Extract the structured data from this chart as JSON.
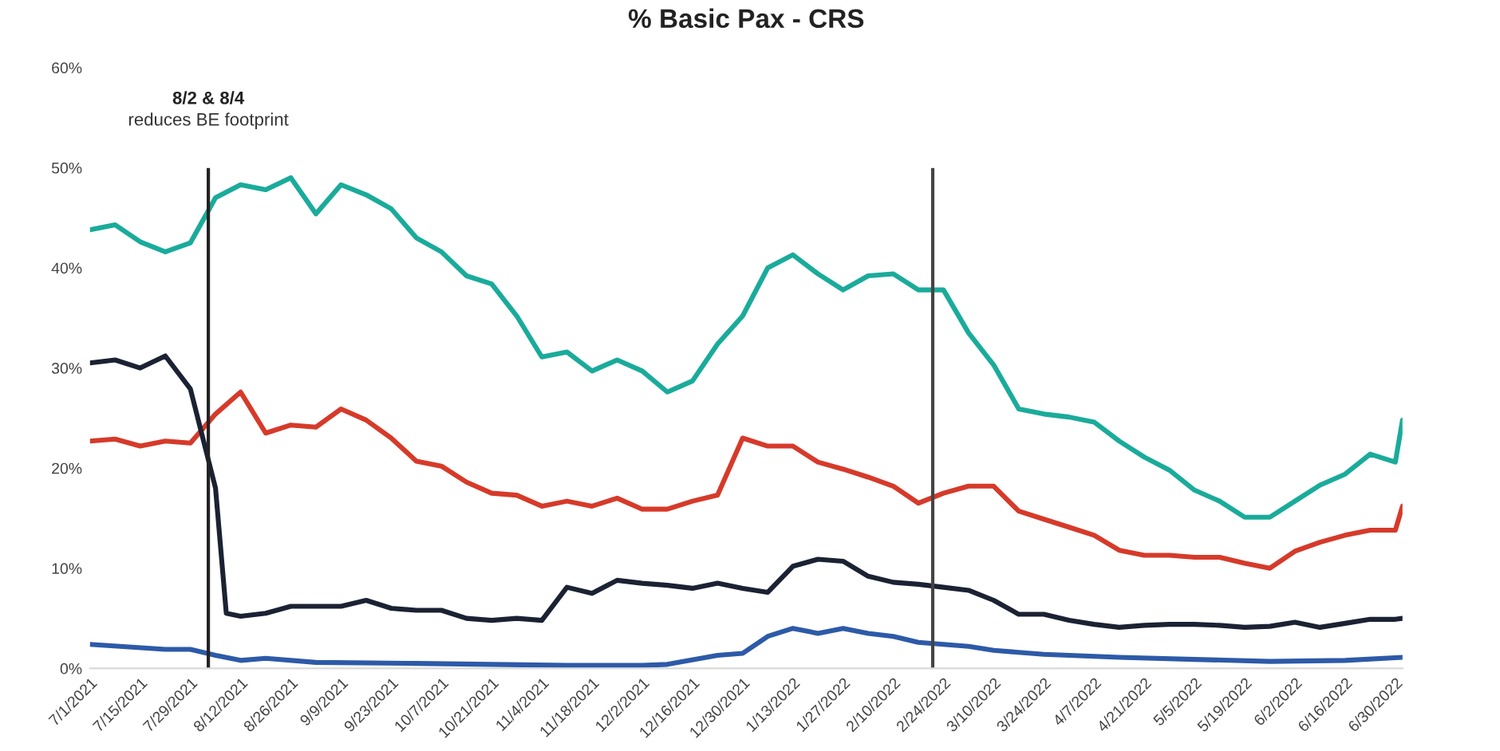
{
  "chart_data": {
    "type": "line",
    "title": "% Basic Pax - CRS",
    "x": [
      "2021-07-01",
      "2021-07-08",
      "2021-07-15",
      "2021-07-22",
      "2021-07-29",
      "2021-08-05",
      "2021-08-12",
      "2021-08-19",
      "2021-08-26",
      "2021-09-02",
      "2021-09-09",
      "2021-09-16",
      "2021-09-23",
      "2021-09-30",
      "2021-10-07",
      "2021-10-14",
      "2021-10-21",
      "2021-10-28",
      "2021-11-04",
      "2021-11-11",
      "2021-11-18",
      "2021-11-25",
      "2021-12-02",
      "2021-12-09",
      "2021-12-16",
      "2021-12-23",
      "2021-12-30",
      "2022-01-06",
      "2022-01-13",
      "2022-01-20",
      "2022-01-27",
      "2022-02-03",
      "2022-02-10",
      "2022-02-17",
      "2022-02-24",
      "2022-03-03",
      "2022-03-10",
      "2022-03-17",
      "2022-03-24",
      "2022-03-31",
      "2022-04-07",
      "2022-04-14",
      "2022-04-21",
      "2022-04-28",
      "2022-05-05",
      "2022-05-12",
      "2022-05-19",
      "2022-05-26",
      "2022-06-02",
      "2022-06-09",
      "2022-06-16",
      "2022-06-23",
      "2022-06-30",
      "2022-07-02"
    ],
    "series": [
      {
        "color": "#1aab9b",
        "values": [
          43.8,
          44.3,
          42.6,
          41.6,
          42.5,
          47,
          48.3,
          47.8,
          49,
          45.4,
          48.3,
          47.3,
          45.9,
          43,
          41.6,
          39.2,
          38.4,
          35.2,
          31.1,
          31.6,
          29.7,
          30.8,
          29.7,
          27.6,
          28.7,
          32.4,
          35.2,
          40,
          41.3,
          39.4,
          37.8,
          39.2,
          39.4,
          37.8,
          37.8,
          33.5,
          30.3,
          25.9,
          25.4,
          25.1,
          24.6,
          22.7,
          21.1,
          19.8,
          17.8,
          16.7,
          15.1,
          15.1,
          16.7,
          18.3,
          19.4,
          21.4,
          20.6,
          24.8
        ]
      },
      {
        "color": "#d63a2a",
        "values": [
          22.7,
          22.9,
          22.2,
          22.7,
          22.5,
          25.4,
          27.6,
          23.5,
          24.3,
          24.1,
          25.9,
          24.8,
          23,
          20.7,
          20.2,
          18.6,
          17.5,
          17.3,
          16.2,
          16.7,
          16.2,
          17.0,
          15.9,
          15.9,
          16.7,
          17.3,
          23,
          22.2,
          22.2,
          20.6,
          19.9,
          19.1,
          18.2,
          16.5,
          17.5,
          18.2,
          18.2,
          15.7,
          14.9,
          14.1,
          13.3,
          11.8,
          11.3,
          11.3,
          11.1,
          11.1,
          10.5,
          10.0,
          11.7,
          12.6,
          13.3,
          13.8,
          13.8,
          16.2
        ]
      },
      {
        "color": "#1a2233",
        "x": [
          "2021-07-01",
          "2021-07-08",
          "2021-07-15",
          "2021-07-22",
          "2021-07-29",
          "2021-08-05",
          "2021-08-08",
          "2021-08-12",
          "2021-08-19",
          "2021-08-26",
          "2021-09-02",
          "2021-09-09",
          "2021-09-16",
          "2021-09-23",
          "2021-09-30",
          "2021-10-07",
          "2021-10-14",
          "2021-10-21",
          "2021-10-28",
          "2021-11-04",
          "2021-11-11",
          "2021-11-18",
          "2021-11-25",
          "2021-12-02",
          "2021-12-09",
          "2021-12-16",
          "2021-12-23",
          "2021-12-30",
          "2022-01-06",
          "2022-01-13",
          "2022-01-20",
          "2022-01-27",
          "2022-02-03",
          "2022-02-10",
          "2022-02-17",
          "2022-02-24",
          "2022-03-03",
          "2022-03-10",
          "2022-03-17",
          "2022-03-24",
          "2022-03-31",
          "2022-04-07",
          "2022-04-14",
          "2022-04-21",
          "2022-04-28",
          "2022-05-05",
          "2022-05-12",
          "2022-05-19",
          "2022-05-26",
          "2022-06-02",
          "2022-06-09",
          "2022-06-16",
          "2022-06-23",
          "2022-06-30",
          "2022-07-02"
        ],
        "values": [
          30.5,
          30.8,
          30,
          31.2,
          27.9,
          18,
          5.5,
          5.2,
          5.5,
          6.2,
          6.2,
          6.2,
          6.8,
          6.0,
          5.8,
          5.8,
          5.0,
          4.8,
          5.0,
          4.8,
          8.1,
          7.5,
          8.8,
          8.5,
          8.3,
          8.0,
          8.5,
          8.0,
          7.6,
          10.2,
          10.9,
          10.7,
          9.2,
          8.6,
          8.4,
          8.1,
          7.8,
          6.8,
          5.4,
          5.4,
          4.8,
          4.4,
          4.1,
          4.3,
          4.4,
          4.4,
          4.3,
          4.1,
          4.2,
          4.6,
          4.1,
          4.5,
          4.9,
          4.9,
          5.0
        ]
      },
      {
        "color": "#2d5aa8",
        "x": [
          "2021-07-01",
          "2021-07-22",
          "2021-07-29",
          "2021-08-05",
          "2021-08-12",
          "2021-08-19",
          "2021-09-02",
          "2021-09-30",
          "2021-10-21",
          "2021-11-11",
          "2021-12-02",
          "2021-12-09",
          "2021-12-23",
          "2021-12-30",
          "2022-01-06",
          "2022-01-13",
          "2022-01-20",
          "2022-01-27",
          "2022-02-03",
          "2022-02-10",
          "2022-02-17",
          "2022-02-24",
          "2022-03-03",
          "2022-03-10",
          "2022-03-24",
          "2022-04-14",
          "2022-05-05",
          "2022-05-26",
          "2022-06-16",
          "2022-07-02"
        ],
        "values": [
          2.4,
          1.9,
          1.9,
          1.3,
          0.8,
          1.0,
          0.6,
          0.5,
          0.4,
          0.3,
          0.3,
          0.4,
          1.3,
          1.5,
          3.2,
          4.0,
          3.5,
          4.0,
          3.5,
          3.2,
          2.6,
          2.4,
          2.2,
          1.8,
          1.4,
          1.1,
          0.9,
          0.7,
          0.8,
          1.1
        ]
      }
    ],
    "xlim": [
      "2021-07-01",
      "2022-07-02"
    ],
    "xticks": [
      {
        "value": "2021-07-01",
        "label": "7/1/2021"
      },
      {
        "value": "2021-07-15",
        "label": "7/15/2021"
      },
      {
        "value": "2021-07-29",
        "label": "7/29/2021"
      },
      {
        "value": "2021-08-12",
        "label": "8/12/2021"
      },
      {
        "value": "2021-08-26",
        "label": "8/26/2021"
      },
      {
        "value": "2021-09-09",
        "label": "9/9/2021"
      },
      {
        "value": "2021-09-23",
        "label": "9/23/2021"
      },
      {
        "value": "2021-10-07",
        "label": "10/7/2021"
      },
      {
        "value": "2021-10-21",
        "label": "10/21/2021"
      },
      {
        "value": "2021-11-04",
        "label": "11/4/2021"
      },
      {
        "value": "2021-11-18",
        "label": "11/18/2021"
      },
      {
        "value": "2021-12-02",
        "label": "12/2/2021"
      },
      {
        "value": "2021-12-16",
        "label": "12/16/2021"
      },
      {
        "value": "2021-12-30",
        "label": "12/30/2021"
      },
      {
        "value": "2022-01-13",
        "label": "1/13/2022"
      },
      {
        "value": "2022-01-27",
        "label": "1/27/2022"
      },
      {
        "value": "2022-02-10",
        "label": "2/10/2022"
      },
      {
        "value": "2022-02-24",
        "label": "2/24/2022"
      },
      {
        "value": "2022-03-10",
        "label": "3/10/2022"
      },
      {
        "value": "2022-03-24",
        "label": "3/24/2022"
      },
      {
        "value": "2022-04-07",
        "label": "4/7/2022"
      },
      {
        "value": "2022-04-21",
        "label": "4/21/2022"
      },
      {
        "value": "2022-05-05",
        "label": "5/5/2022"
      },
      {
        "value": "2022-05-19",
        "label": "5/19/2022"
      },
      {
        "value": "2022-06-02",
        "label": "6/2/2022"
      },
      {
        "value": "2022-06-16",
        "label": "6/16/2022"
      },
      {
        "value": "2022-06-30",
        "label": "6/30/2022"
      }
    ],
    "ylim": [
      0,
      60
    ],
    "yticks": [
      {
        "value": 0,
        "label": "0%"
      },
      {
        "value": 10,
        "label": "10%"
      },
      {
        "value": 20,
        "label": "20%"
      },
      {
        "value": 30,
        "label": "30%"
      },
      {
        "value": 40,
        "label": "40%"
      },
      {
        "value": 50,
        "label": "50%"
      },
      {
        "value": 60,
        "label": "60%"
      }
    ],
    "ref_lines": [
      {
        "axis": "x",
        "value": "2021-08-03",
        "label": "8/2 & 8/4",
        "color": "#222222"
      },
      {
        "axis": "x",
        "value": "2022-02-21",
        "color": "#444444"
      }
    ],
    "annotations": [
      "reduces BE footprint"
    ]
  }
}
